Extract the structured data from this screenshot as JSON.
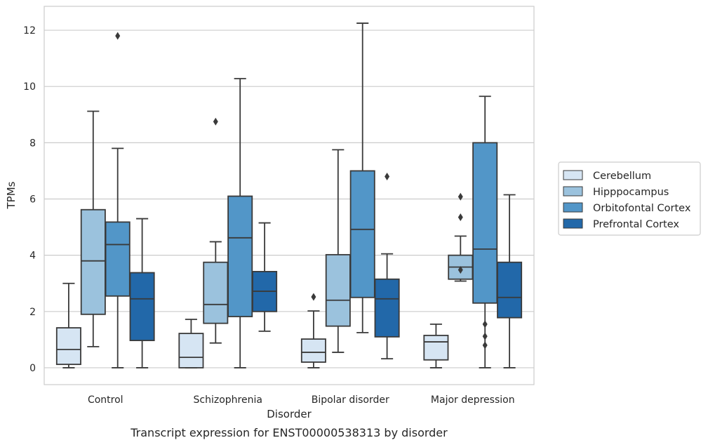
{
  "chart_data": {
    "type": "box",
    "title": "",
    "caption": "Transcript expression for ENST00000538313 by disorder",
    "xlabel": "Disorder",
    "ylabel": "TPMs",
    "ylim": [
      -0.6,
      12.85
    ],
    "yticks": [
      0,
      2,
      4,
      6,
      8,
      10,
      12
    ],
    "grid": "horizontal",
    "legend_position": "right",
    "categories": [
      "Control",
      "Schizophrenia",
      "Bipolar disorder",
      "Major depression"
    ],
    "series": [
      {
        "name": "Cerebellum",
        "color": "#d6e5f3",
        "boxes": [
          {
            "whislo": 0.0,
            "q1": 0.12,
            "med": 0.65,
            "q3": 1.42,
            "whishi": 3.0,
            "fliers": []
          },
          {
            "whislo": 0.0,
            "q1": 0.0,
            "med": 0.37,
            "q3": 1.22,
            "whishi": 1.72,
            "fliers": []
          },
          {
            "whislo": 0.0,
            "q1": 0.2,
            "med": 0.55,
            "q3": 1.02,
            "whishi": 2.02,
            "fliers": [
              2.52
            ]
          },
          {
            "whislo": 0.0,
            "q1": 0.28,
            "med": 0.92,
            "q3": 1.15,
            "whishi": 1.55,
            "fliers": []
          }
        ]
      },
      {
        "name": "Hipppocampus",
        "color": "#9bc2dd",
        "boxes": [
          {
            "whislo": 0.75,
            "q1": 1.9,
            "med": 3.8,
            "q3": 5.62,
            "whishi": 9.12,
            "fliers": []
          },
          {
            "whislo": 0.88,
            "q1": 1.58,
            "med": 2.25,
            "q3": 3.75,
            "whishi": 4.48,
            "fliers": [
              8.75
            ]
          },
          {
            "whislo": 0.55,
            "q1": 1.48,
            "med": 2.4,
            "q3": 4.02,
            "whishi": 7.75,
            "fliers": []
          },
          {
            "whislo": 3.08,
            "q1": 3.15,
            "med": 3.58,
            "q3": 4.0,
            "whishi": 4.68,
            "fliers": [
              3.48,
              5.35,
              6.08
            ]
          }
        ]
      },
      {
        "name": "Orbitofontal Cortex",
        "color": "#5296c8",
        "boxes": [
          {
            "whislo": 0.0,
            "q1": 2.55,
            "med": 4.38,
            "q3": 5.18,
            "whishi": 7.8,
            "fliers": [
              11.8
            ]
          },
          {
            "whislo": 0.0,
            "q1": 1.82,
            "med": 4.62,
            "q3": 6.1,
            "whishi": 10.28,
            "fliers": []
          },
          {
            "whislo": 1.25,
            "q1": 2.5,
            "med": 4.92,
            "q3": 7.0,
            "whishi": 12.25,
            "fliers": []
          },
          {
            "whislo": 0.0,
            "q1": 2.3,
            "med": 4.22,
            "q3": 8.0,
            "whishi": 9.65,
            "fliers": [
              0.8,
              1.12,
              1.55
            ]
          }
        ]
      },
      {
        "name": "Prefrontal Cortex",
        "color": "#2268a9",
        "boxes": [
          {
            "whislo": 0.0,
            "q1": 0.97,
            "med": 2.45,
            "q3": 3.38,
            "whishi": 5.3,
            "fliers": []
          },
          {
            "whislo": 1.3,
            "q1": 2.0,
            "med": 2.72,
            "q3": 3.42,
            "whishi": 5.15,
            "fliers": []
          },
          {
            "whislo": 0.32,
            "q1": 1.1,
            "med": 2.45,
            "q3": 3.15,
            "whishi": 4.05,
            "fliers": [
              6.8
            ]
          },
          {
            "whislo": 0.0,
            "q1": 1.78,
            "med": 2.5,
            "q3": 3.75,
            "whishi": 6.15,
            "fliers": []
          }
        ]
      }
    ]
  }
}
